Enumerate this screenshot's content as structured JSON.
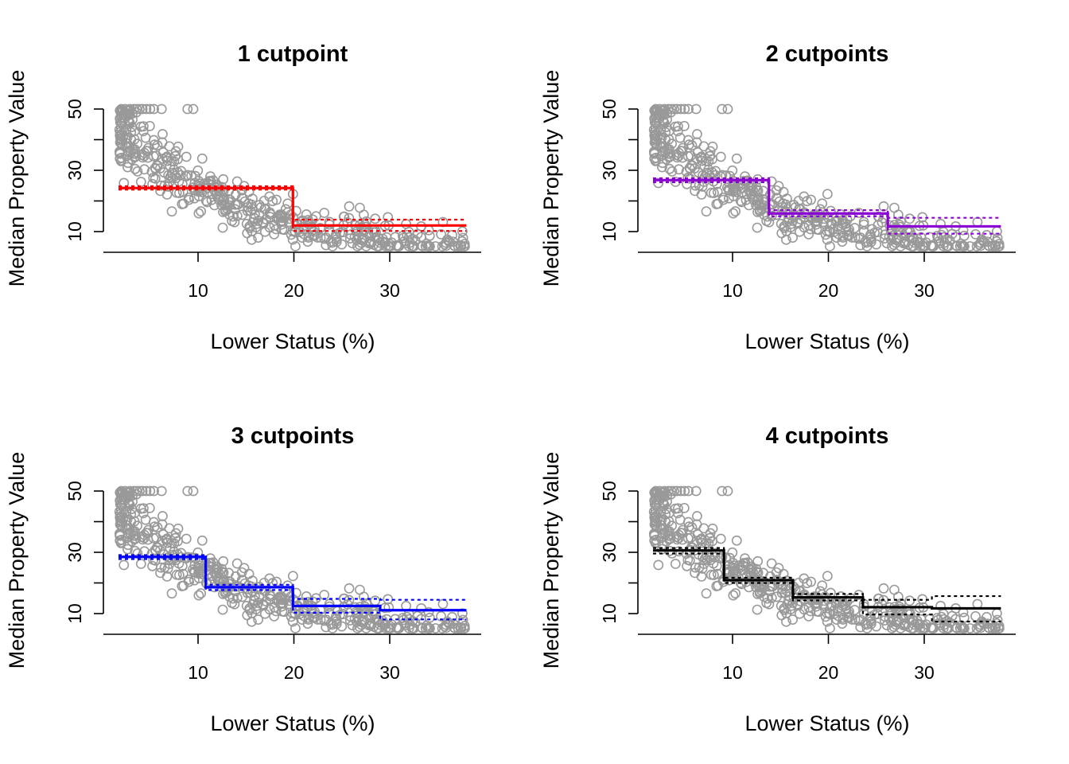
{
  "chart_data": [
    {
      "type": "scatter",
      "title": "1 cutpoint",
      "xlabel": "Lower Status (%)",
      "ylabel": "Median Property Value",
      "xlim": [
        1.7,
        38.0
      ],
      "ylim": [
        5,
        50
      ],
      "xticks": [
        10,
        20,
        30
      ],
      "yticks": [
        10,
        30,
        50
      ],
      "yminor_ticks": [
        20,
        40
      ],
      "points_color": "#999999",
      "fit": {
        "color": "#ff0000",
        "cutpoints": [
          19.9
        ],
        "fit_levels": [
          24.2,
          12.0
        ],
        "ci_upper": [
          24.8,
          13.9
        ],
        "ci_lower": [
          23.7,
          10.2
        ]
      }
    },
    {
      "type": "scatter",
      "title": "2 cutpoints",
      "xlabel": "Lower Status (%)",
      "ylabel": "Median Property Value",
      "xlim": [
        1.7,
        38.0
      ],
      "ylim": [
        5,
        50
      ],
      "xticks": [
        10,
        20,
        30
      ],
      "yticks": [
        10,
        30,
        50
      ],
      "yminor_ticks": [
        20,
        40
      ],
      "points_color": "#999999",
      "fit": {
        "color": "#8b00d4",
        "cutpoints": [
          13.8,
          26.2
        ],
        "fit_levels": [
          26.8,
          15.9,
          11.7
        ],
        "ci_upper": [
          27.4,
          17.0,
          14.5
        ],
        "ci_lower": [
          26.1,
          15.0,
          9.3
        ]
      }
    },
    {
      "type": "scatter",
      "title": "3 cutpoints",
      "xlabel": "Lower Status (%)",
      "ylabel": "Median Property Value",
      "xlim": [
        1.7,
        38.0
      ],
      "ylim": [
        5,
        50
      ],
      "xticks": [
        10,
        20,
        30
      ],
      "yticks": [
        10,
        30,
        50
      ],
      "yminor_ticks": [
        20,
        40
      ],
      "points_color": "#999999",
      "fit": {
        "color": "#0000ff",
        "cutpoints": [
          10.8,
          19.9,
          29.0
        ],
        "fit_levels": [
          28.5,
          18.6,
          12.5,
          11.1
        ],
        "ci_upper": [
          29.1,
          19.4,
          14.8,
          14.5
        ],
        "ci_lower": [
          27.8,
          17.7,
          10.3,
          8.1
        ]
      }
    },
    {
      "type": "scatter",
      "title": "4 cutpoints",
      "xlabel": "Lower Status (%)",
      "ylabel": "Median Property Value",
      "xlim": [
        1.7,
        38.0
      ],
      "ylim": [
        5,
        50
      ],
      "xticks": [
        10,
        20,
        30
      ],
      "yticks": [
        10,
        30,
        50
      ],
      "yminor_ticks": [
        20,
        40
      ],
      "points_color": "#999999",
      "fit": {
        "color": "#000000",
        "cutpoints": [
          9.1,
          16.3,
          23.6,
          30.8
        ],
        "fit_levels": [
          30.6,
          20.9,
          15.3,
          12.1,
          11.7
        ],
        "ci_upper": [
          31.4,
          21.7,
          16.4,
          14.5,
          15.7
        ],
        "ci_lower": [
          29.6,
          20.0,
          14.3,
          9.7,
          7.4
        ]
      }
    }
  ]
}
